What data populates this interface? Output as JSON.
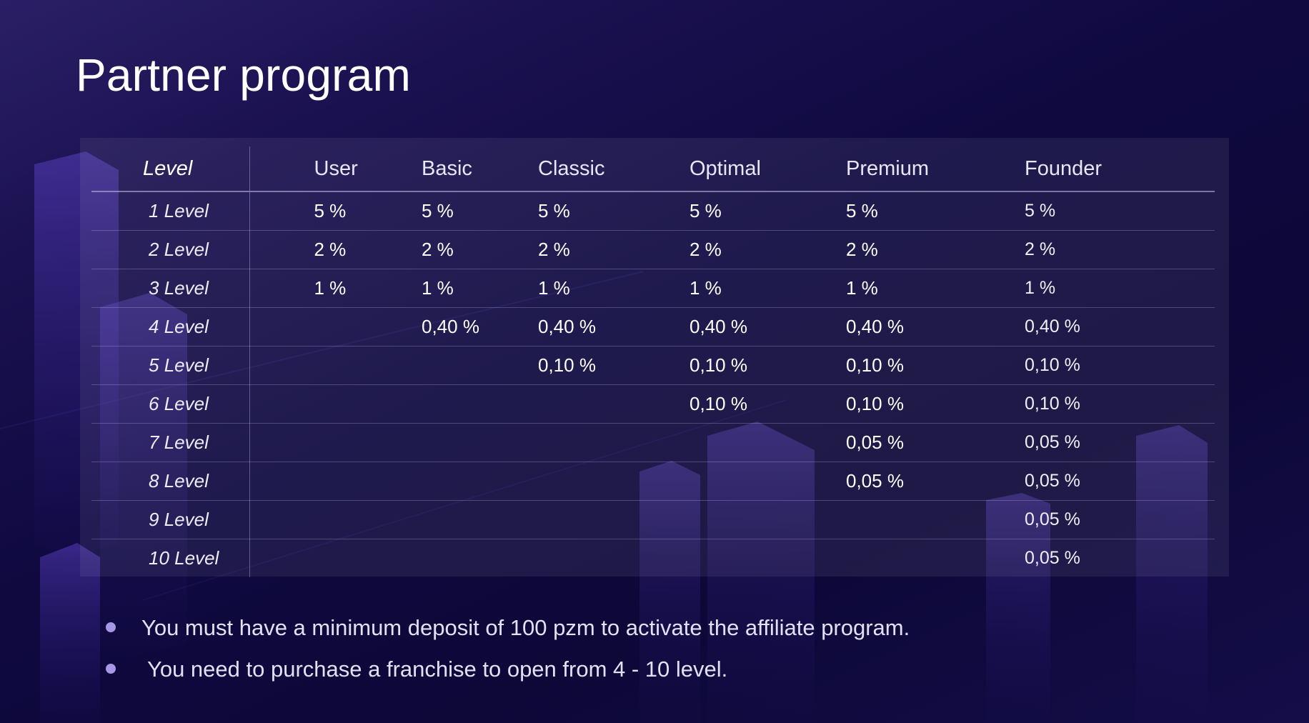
{
  "title": "Partner program",
  "table": {
    "columns": [
      "Level",
      "User",
      "Basic",
      "Classic",
      "Optimal",
      "Premium",
      "Founder"
    ],
    "rows": [
      {
        "num": "1",
        "word": "Level",
        "cells": [
          "5 %",
          "5 %",
          "5 %",
          "5 %",
          "5 %",
          "5 %"
        ]
      },
      {
        "num": "2",
        "word": "Level",
        "cells": [
          "2 %",
          "2 %",
          "2 %",
          "2 %",
          "2 %",
          "2 %"
        ]
      },
      {
        "num": "3",
        "word": "Level",
        "cells": [
          "1 %",
          "1 %",
          "1 %",
          "1 %",
          "1 %",
          "1 %"
        ]
      },
      {
        "num": "4",
        "word": "Level",
        "cells": [
          "",
          "0,40 %",
          "0,40 %",
          "0,40 %",
          "0,40 %",
          "0,40 %"
        ]
      },
      {
        "num": "5",
        "word": "Level",
        "cells": [
          "",
          "",
          "0,10 %",
          "0,10 %",
          "0,10 %",
          "0,10 %"
        ]
      },
      {
        "num": "6",
        "word": "Level",
        "cells": [
          "",
          "",
          "",
          "0,10 %",
          "0,10 %",
          "0,10 %"
        ]
      },
      {
        "num": "7",
        "word": "Level",
        "cells": [
          "",
          "",
          "",
          "",
          "0,05 %",
          "0,05 %"
        ]
      },
      {
        "num": "8",
        "word": "Level",
        "cells": [
          "",
          "",
          "",
          "",
          "0,05 %",
          "0,05 %"
        ]
      },
      {
        "num": "9",
        "word": "Level",
        "cells": [
          "",
          "",
          "",
          "",
          "",
          "0,05 %"
        ]
      },
      {
        "num": "10",
        "word": "Level",
        "cells": [
          "",
          "",
          "",
          "",
          "",
          "0,05 %"
        ]
      }
    ]
  },
  "notes": [
    "You must have a minimum deposit of 100 pzm to activate the affiliate program.",
    "You need to purchase a franchise to open from 4 - 10 level."
  ],
  "colors": {
    "background": "#0f0940",
    "bullet": "#a596e6",
    "text": "#ffffff"
  }
}
